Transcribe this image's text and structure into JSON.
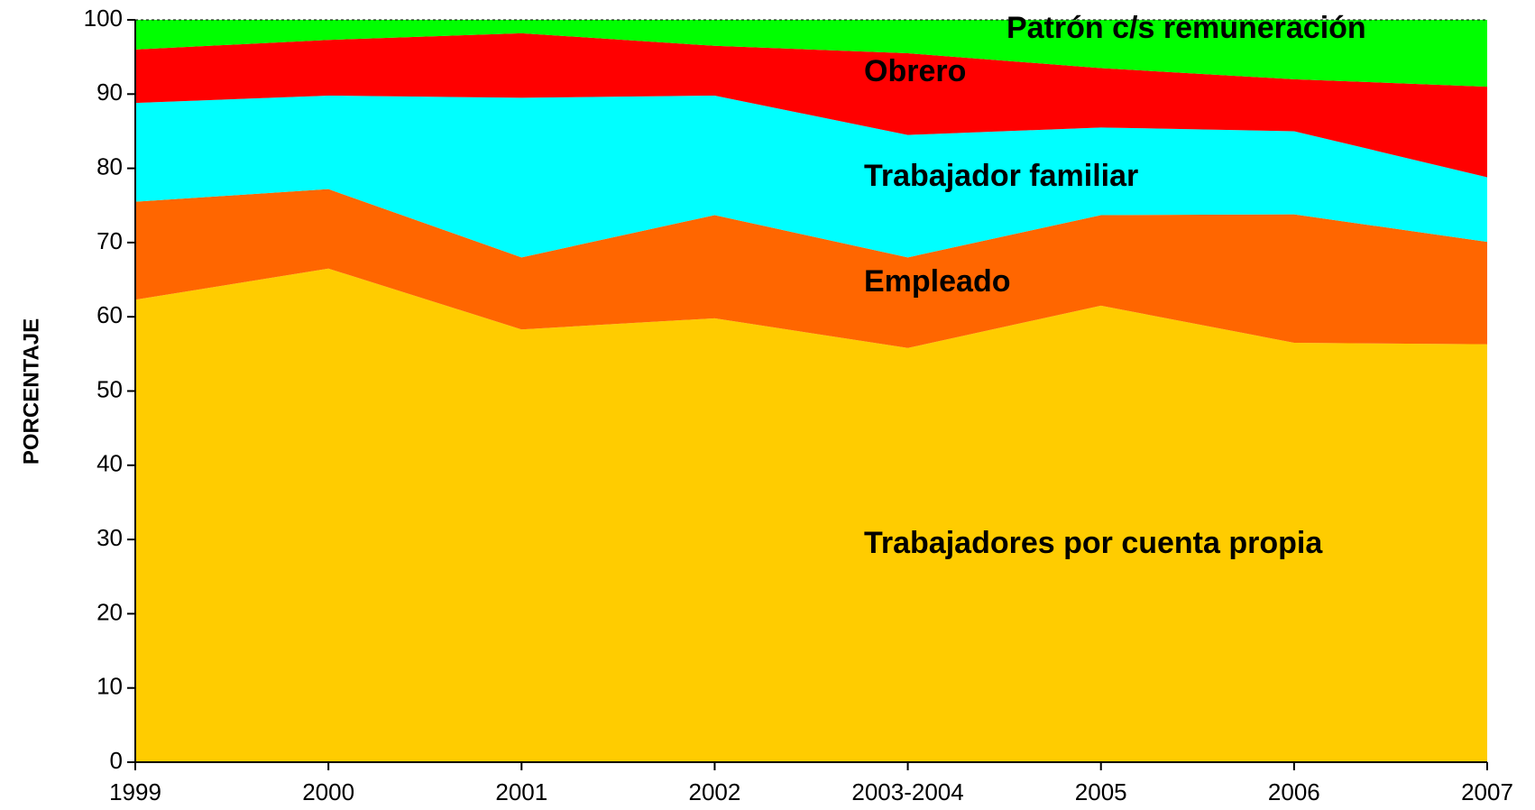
{
  "chart_data": {
    "type": "stacked_area",
    "y_label": "PORCENTAJE",
    "categories": [
      "1999",
      "2000",
      "2001",
      "2002",
      "2003-2004",
      "2005",
      "2006",
      "2007"
    ],
    "ylim": [
      0,
      100
    ],
    "yticks": [
      0,
      10,
      20,
      30,
      40,
      50,
      60,
      70,
      80,
      90,
      100
    ],
    "series": [
      {
        "name": "Trabajadores por cuenta propia",
        "color": "#ffcc00",
        "values": [
          62.3,
          66.5,
          58.3,
          59.8,
          55.8,
          61.5,
          56.5,
          56.3
        ]
      },
      {
        "name": "Empleado",
        "color": "#ff6600",
        "values": [
          13.2,
          10.7,
          9.7,
          13.9,
          12.2,
          12.2,
          17.3,
          13.8
        ]
      },
      {
        "name": "Trabajador familiar",
        "color": "#00ffff",
        "values": [
          13.3,
          12.6,
          21.5,
          16.1,
          16.5,
          11.8,
          11.2,
          8.7
        ]
      },
      {
        "name": "Obrero",
        "color": "#ff0000",
        "values": [
          7.2,
          7.5,
          8.7,
          6.7,
          11.0,
          8.0,
          7.0,
          12.2
        ]
      },
      {
        "name": "Patrón c/s remuneración",
        "color": "#00ff00",
        "values": [
          4.0,
          2.7,
          1.8,
          3.5,
          4.5,
          6.5,
          8.0,
          9.0
        ]
      }
    ]
  }
}
